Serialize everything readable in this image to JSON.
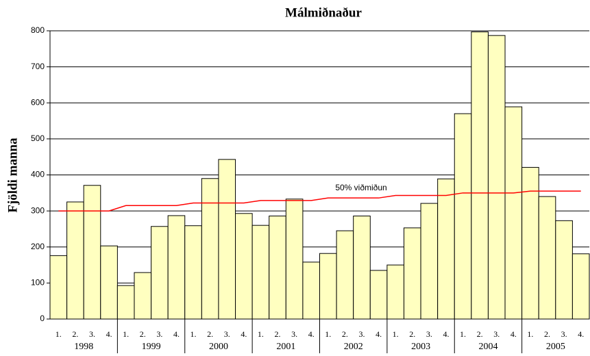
{
  "chart_data": {
    "type": "bar",
    "title": "Málmiðnaður",
    "ylabel": "Fjöldi manna",
    "categories": [
      "1.",
      "2.",
      "3.",
      "4.",
      "1.",
      "2.",
      "3.",
      "4.",
      "1.",
      "2.",
      "3.",
      "4.",
      "1.",
      "2.",
      "3.",
      "4.",
      "1.",
      "2.",
      "3.",
      "4.",
      "1.",
      "2.",
      "3.",
      "4.",
      "1.",
      "2.",
      "3.",
      "4.",
      "1.",
      "2.",
      "3.",
      "4."
    ],
    "groups": [
      "1998",
      "1999",
      "2000",
      "2001",
      "2002",
      "2003",
      "2004",
      "2005"
    ],
    "values": [
      176,
      325,
      371,
      203,
      93,
      129,
      257,
      287,
      259,
      390,
      443,
      293,
      260,
      286,
      333,
      158,
      182,
      245,
      286,
      135,
      150,
      253,
      321,
      389,
      570,
      797,
      787,
      589,
      421,
      340,
      273,
      181
    ],
    "color": "#ffffc0",
    "line": {
      "name": "50% viðmiðun",
      "color": "#ff0000",
      "values": [
        300,
        300,
        300,
        300,
        315,
        315,
        315,
        315,
        322,
        322,
        322,
        322,
        329,
        329,
        329,
        329,
        336,
        336,
        336,
        336,
        343,
        343,
        343,
        343,
        350,
        350,
        350,
        350,
        355,
        355,
        355,
        355
      ]
    },
    "ylim": [
      0,
      800
    ],
    "yticks": [
      0,
      100,
      200,
      300,
      400,
      500,
      600,
      700,
      800
    ],
    "grid": true
  }
}
